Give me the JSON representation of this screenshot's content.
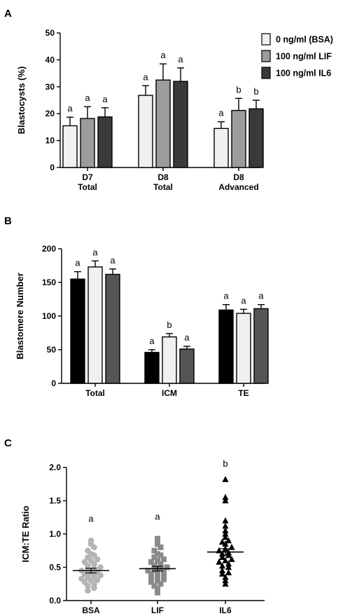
{
  "legend": [
    {
      "label": "0 ng/ml (BSA)",
      "color": "#f0f0f0"
    },
    {
      "label": "100 ng/ml LIF",
      "color": "#9c9c9c"
    },
    {
      "label": "100 ng/ml IL6",
      "color": "#3a3a3a"
    }
  ],
  "chart_data": [
    {
      "panel": "A",
      "type": "bar",
      "ylabel": "Blastocysts (%)",
      "ylim": [
        0,
        50
      ],
      "yticks": [
        0,
        10,
        20,
        30,
        40,
        50
      ],
      "categories": [
        [
          "D7",
          "Total"
        ],
        [
          "D8",
          "Total"
        ],
        [
          "D8",
          "Advanced"
        ]
      ],
      "series": [
        {
          "name": "0 ng/ml (BSA)",
          "color": "#f0f0f0",
          "values": [
            15.5,
            26.8,
            14.5
          ],
          "errors": [
            3.2,
            3.6,
            2.5
          ],
          "labels": [
            "a",
            "a",
            "a"
          ]
        },
        {
          "name": "100 ng/ml LIF",
          "color": "#9c9c9c",
          "values": [
            18.2,
            32.5,
            21.2
          ],
          "errors": [
            4.4,
            6.0,
            4.5
          ],
          "labels": [
            "a",
            "a",
            "b"
          ]
        },
        {
          "name": "100 ng/ml IL6",
          "color": "#3a3a3a",
          "values": [
            18.8,
            32.0,
            21.8
          ],
          "errors": [
            3.4,
            5.0,
            3.2
          ],
          "labels": [
            "a",
            "a",
            "b"
          ]
        }
      ]
    },
    {
      "panel": "B",
      "type": "bar",
      "ylabel": "Blastomere Number",
      "ylim": [
        0,
        200
      ],
      "yticks": [
        0,
        50,
        100,
        150,
        200
      ],
      "categories": [
        "Total",
        "ICM",
        "TE"
      ],
      "series": [
        {
          "color": "#000000",
          "values": [
            155,
            46,
            109
          ],
          "errors": [
            11,
            4,
            8
          ],
          "labels": [
            "a",
            "a",
            "a"
          ]
        },
        {
          "color": "#f0f0f0",
          "values": [
            173,
            69,
            104
          ],
          "errors": [
            9,
            5,
            6
          ],
          "labels": [
            "a",
            "b",
            "a"
          ]
        },
        {
          "color": "#555555",
          "values": [
            162,
            51,
            111
          ],
          "errors": [
            8,
            4,
            6
          ],
          "labels": [
            "a",
            "a",
            "a"
          ]
        }
      ]
    },
    {
      "panel": "C",
      "type": "scatter",
      "ylabel": "ICM:TE  Ratio",
      "ylim": [
        0,
        2.0
      ],
      "yticks": [
        "0.0",
        "0.5",
        "1.0",
        "1.5",
        "2.0"
      ],
      "categories": [
        "BSA",
        "LIF",
        "IL6"
      ],
      "groups": [
        {
          "name": "BSA",
          "marker": "circle",
          "color": "#b4b4b4",
          "mean": 0.45,
          "sem": 0.035,
          "label": "a",
          "points": [
            0.15,
            0.19,
            0.22,
            0.25,
            0.28,
            0.3,
            0.31,
            0.33,
            0.35,
            0.36,
            0.38,
            0.4,
            0.42,
            0.43,
            0.45,
            0.46,
            0.48,
            0.5,
            0.52,
            0.55,
            0.58,
            0.6,
            0.62,
            0.65,
            0.68,
            0.7,
            0.75,
            0.8,
            0.85,
            0.9
          ]
        },
        {
          "name": "LIF",
          "marker": "square",
          "color": "#8a8a8a",
          "mean": 0.48,
          "sem": 0.035,
          "label": "a",
          "points": [
            0.12,
            0.18,
            0.22,
            0.25,
            0.28,
            0.3,
            0.32,
            0.35,
            0.36,
            0.38,
            0.4,
            0.42,
            0.44,
            0.45,
            0.46,
            0.48,
            0.5,
            0.52,
            0.55,
            0.58,
            0.6,
            0.62,
            0.65,
            0.68,
            0.7,
            0.75,
            0.8,
            0.85,
            0.9,
            0.93
          ]
        },
        {
          "name": "IL6",
          "marker": "triangle",
          "color": "#000000",
          "mean": 0.73,
          "sem": 0.05,
          "label": "b",
          "points": [
            0.25,
            0.3,
            0.35,
            0.4,
            0.42,
            0.45,
            0.5,
            0.52,
            0.55,
            0.58,
            0.6,
            0.62,
            0.65,
            0.68,
            0.7,
            0.72,
            0.75,
            0.78,
            0.8,
            0.85,
            0.88,
            0.9,
            0.95,
            1.0,
            1.05,
            1.12,
            1.2,
            1.5,
            1.55,
            1.82
          ]
        }
      ]
    }
  ]
}
